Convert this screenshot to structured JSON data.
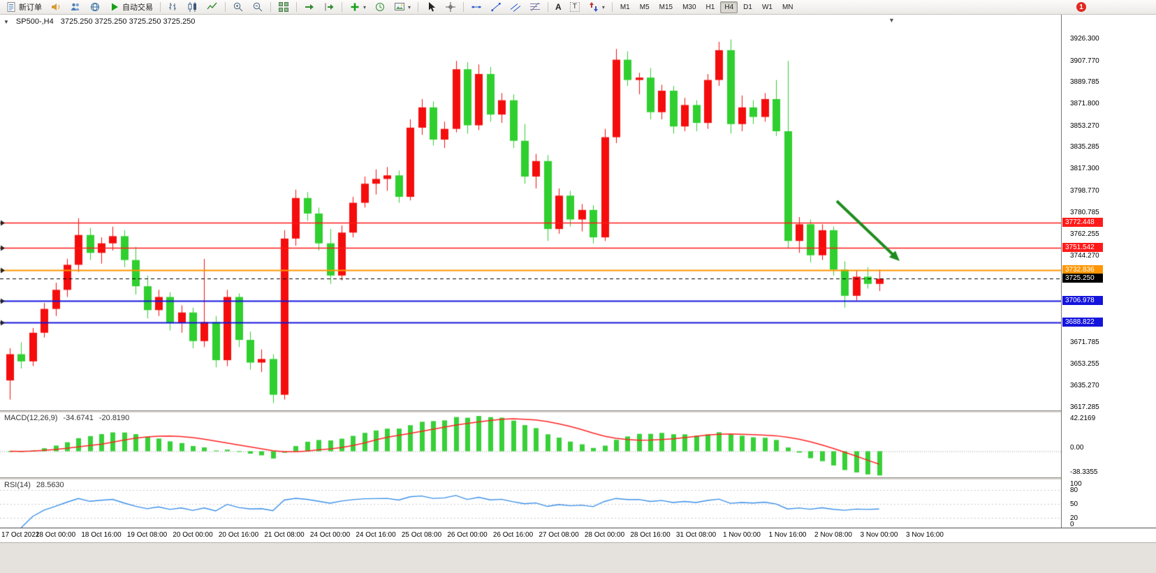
{
  "toolbar": {
    "new_order": "新订单",
    "autotrading": "自动交易",
    "timeframes": [
      "M1",
      "M5",
      "M15",
      "M30",
      "H1",
      "H4",
      "D1",
      "W1",
      "MN"
    ],
    "active_timeframe": "H4",
    "badge": "1"
  },
  "chart": {
    "symbol_period": "SP500-,H4",
    "quote_line": "3725.250 3725.250 3725.250 3725.250"
  },
  "icons": {
    "chart_menu": "▼",
    "window_caret": "▼",
    "dropdown_caret": "▾"
  },
  "chart_data": {
    "type": "candlestick",
    "symbol": "SP500-",
    "timeframe": "H4",
    "grid": false,
    "colors": {
      "bull": "#f50d0d",
      "bear": "#2fcf2f"
    },
    "price_scale": {
      "top": 3946.2,
      "bottom": 3614.9
    },
    "price_axis": [
      "3926.300",
      "3907.770",
      "3889.785",
      "3871.800",
      "3853.270",
      "3835.285",
      "3817.300",
      "3798.770",
      "3780.785",
      "3762.255",
      "3744.270",
      "3671.785",
      "3653.255",
      "3635.270",
      "3617.285"
    ],
    "x_labels": [
      "17 Oct 2022",
      "18 Oct 00:00",
      "18 Oct 16:00",
      "19 Oct 08:00",
      "20 Oct 00:00",
      "20 Oct 16:00",
      "21 Oct 08:00",
      "24 Oct 00:00",
      "24 Oct 16:00",
      "25 Oct 08:00",
      "26 Oct 00:00",
      "26 Oct 16:00",
      "27 Oct 08:00",
      "28 Oct 00:00",
      "28 Oct 16:00",
      "31 Oct 08:00",
      "1 Nov 00:00",
      "1 Nov 16:00",
      "2 Nov 08:00",
      "3 Nov 00:00",
      "3 Nov 16:00"
    ],
    "x_label_step": 4,
    "candles": [
      [
        3640,
        3667,
        3624,
        3662
      ],
      [
        3662,
        3672,
        3650,
        3656
      ],
      [
        3656,
        3684,
        3652,
        3680
      ],
      [
        3680,
        3705,
        3676,
        3700
      ],
      [
        3700,
        3722,
        3694,
        3716
      ],
      [
        3716,
        3742,
        3710,
        3737
      ],
      [
        3737,
        3776,
        3731,
        3762
      ],
      [
        3762,
        3768,
        3741,
        3747
      ],
      [
        3747,
        3760,
        3738,
        3755
      ],
      [
        3755,
        3769,
        3749,
        3761
      ],
      [
        3761,
        3766,
        3735,
        3741
      ],
      [
        3741,
        3752,
        3712,
        3719
      ],
      [
        3719,
        3728,
        3692,
        3699
      ],
      [
        3699,
        3716,
        3694,
        3710
      ],
      [
        3710,
        3714,
        3682,
        3688
      ],
      [
        3688,
        3703,
        3680,
        3697
      ],
      [
        3697,
        3701,
        3667,
        3673
      ],
      [
        3673,
        3742,
        3668,
        3689
      ],
      [
        3689,
        3694,
        3651,
        3657
      ],
      [
        3657,
        3716,
        3652,
        3710
      ],
      [
        3710,
        3713,
        3668,
        3674
      ],
      [
        3674,
        3681,
        3649,
        3655
      ],
      [
        3655,
        3666,
        3647,
        3658
      ],
      [
        3658,
        3662,
        3621,
        3628
      ],
      [
        3628,
        3766,
        3624,
        3759
      ],
      [
        3759,
        3800,
        3753,
        3793
      ],
      [
        3793,
        3798,
        3774,
        3780
      ],
      [
        3780,
        3785,
        3749,
        3755
      ],
      [
        3755,
        3767,
        3721,
        3728
      ],
      [
        3728,
        3770,
        3724,
        3764
      ],
      [
        3764,
        3794,
        3760,
        3789
      ],
      [
        3789,
        3811,
        3785,
        3805
      ],
      [
        3805,
        3817,
        3796,
        3809
      ],
      [
        3809,
        3819,
        3799,
        3812
      ],
      [
        3812,
        3816,
        3789,
        3794
      ],
      [
        3794,
        3859,
        3791,
        3852
      ],
      [
        3852,
        3876,
        3846,
        3869
      ],
      [
        3869,
        3874,
        3837,
        3842
      ],
      [
        3842,
        3857,
        3835,
        3851
      ],
      [
        3851,
        3908,
        3848,
        3901
      ],
      [
        3901,
        3907,
        3847,
        3854
      ],
      [
        3854,
        3905,
        3850,
        3897
      ],
      [
        3897,
        3903,
        3857,
        3863
      ],
      [
        3863,
        3881,
        3856,
        3875
      ],
      [
        3875,
        3880,
        3835,
        3841
      ],
      [
        3841,
        3855,
        3805,
        3811
      ],
      [
        3811,
        3830,
        3801,
        3824
      ],
      [
        3824,
        3829,
        3757,
        3767
      ],
      [
        3767,
        3801,
        3763,
        3795
      ],
      [
        3795,
        3799,
        3769,
        3775
      ],
      [
        3775,
        3788,
        3765,
        3783
      ],
      [
        3783,
        3787,
        3755,
        3760
      ],
      [
        3760,
        3851,
        3757,
        3844
      ],
      [
        3844,
        3918,
        3839,
        3909
      ],
      [
        3909,
        3916,
        3887,
        3892
      ],
      [
        3892,
        3898,
        3880,
        3894
      ],
      [
        3894,
        3902,
        3859,
        3865
      ],
      [
        3865,
        3888,
        3859,
        3883
      ],
      [
        3883,
        3887,
        3847,
        3853
      ],
      [
        3853,
        3877,
        3849,
        3871
      ],
      [
        3871,
        3875,
        3849,
        3856
      ],
      [
        3856,
        3897,
        3851,
        3892
      ],
      [
        3892,
        3924,
        3887,
        3917
      ],
      [
        3917,
        3926,
        3847,
        3855
      ],
      [
        3855,
        3879,
        3849,
        3869
      ],
      [
        3869,
        3875,
        3855,
        3861
      ],
      [
        3861,
        3881,
        3857,
        3876
      ],
      [
        3876,
        3892,
        3845,
        3849
      ],
      [
        3849,
        3908,
        3751,
        3757
      ],
      [
        3757,
        3777,
        3747,
        3771
      ],
      [
        3771,
        3775,
        3739,
        3745
      ],
      [
        3745,
        3771,
        3741,
        3766
      ],
      [
        3766,
        3769,
        3728,
        3733
      ],
      [
        3733,
        3740,
        3701,
        3711
      ],
      [
        3711,
        3732,
        3707,
        3727
      ],
      [
        3727,
        3735,
        3717,
        3721
      ],
      [
        3721,
        3733,
        3715,
        3725.25
      ]
    ],
    "price_lines": [
      {
        "label": "3772.448",
        "price": 3772.448,
        "color": "#ff1a1a",
        "width": 1.4
      },
      {
        "label": "3751.542",
        "price": 3751.542,
        "color": "#ff1a1a",
        "width": 1.4
      },
      {
        "label": "3732.836",
        "price": 3732.836,
        "color": "#ff9500",
        "width": 2
      },
      {
        "label": "3706.978",
        "price": 3706.978,
        "color": "#1414dd",
        "width": 2
      },
      {
        "label": "3688.822",
        "price": 3688.822,
        "color": "#1414dd",
        "width": 2
      }
    ],
    "current_price": {
      "label": "3725.250",
      "price": 3725.25,
      "color": "#000000"
    },
    "arrow": {
      "color": "#1e8c1e",
      "start": {
        "index": 72.3,
        "price": 3790.5
      },
      "end": {
        "index": 77.8,
        "price": 3740.2
      }
    },
    "indicators": {
      "macd": {
        "name": "MACD(12,26,9)",
        "value_main": "-34.6741",
        "value_signal": "-20.8190",
        "params": [
          12,
          26,
          9
        ],
        "axis": [
          "42.2169",
          "0.00",
          "-38.3355"
        ],
        "hist_color": "#38d038",
        "signal_color": "#ff2222"
      },
      "rsi": {
        "name": "RSI(14)",
        "value": "28.5630",
        "period": 14,
        "axis": [
          "100",
          "80",
          "50",
          "20",
          "0"
        ],
        "levels": [
          80,
          50,
          20
        ],
        "line_color": "#3a8fe8"
      }
    }
  }
}
